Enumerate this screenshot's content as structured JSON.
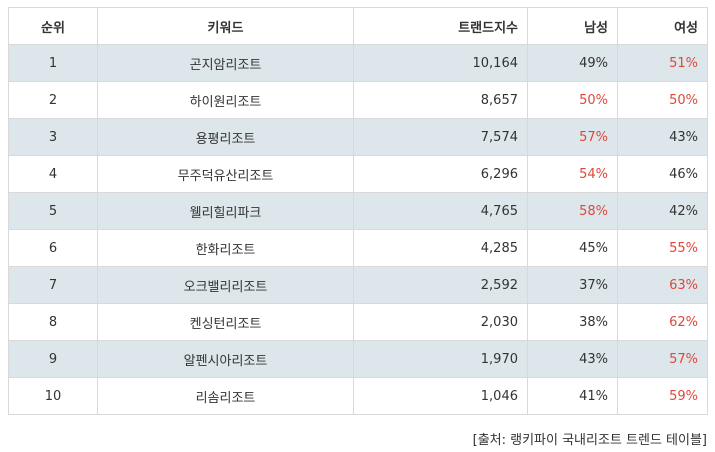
{
  "table": {
    "headers": {
      "rank": "순위",
      "keyword": "키워드",
      "trend_index": "트랜드지수",
      "male": "남성",
      "female": "여성"
    },
    "rows": [
      {
        "rank": "1",
        "keyword": "곤지암리조트",
        "trend_index": "10,164",
        "male": "49%",
        "female": "51%",
        "highlight": "female"
      },
      {
        "rank": "2",
        "keyword": "하이원리조트",
        "trend_index": "8,657",
        "male": "50%",
        "female": "50%",
        "highlight": "both"
      },
      {
        "rank": "3",
        "keyword": "용평리조트",
        "trend_index": "7,574",
        "male": "57%",
        "female": "43%",
        "highlight": "male"
      },
      {
        "rank": "4",
        "keyword": "무주덕유산리조트",
        "trend_index": "6,296",
        "male": "54%",
        "female": "46%",
        "highlight": "male"
      },
      {
        "rank": "5",
        "keyword": "웰리힐리파크",
        "trend_index": "4,765",
        "male": "58%",
        "female": "42%",
        "highlight": "male"
      },
      {
        "rank": "6",
        "keyword": "한화리조트",
        "trend_index": "4,285",
        "male": "45%",
        "female": "55%",
        "highlight": "female"
      },
      {
        "rank": "7",
        "keyword": "오크밸리리조트",
        "trend_index": "2,592",
        "male": "37%",
        "female": "63%",
        "highlight": "female"
      },
      {
        "rank": "8",
        "keyword": "켄싱턴리조트",
        "trend_index": "2,030",
        "male": "38%",
        "female": "62%",
        "highlight": "female"
      },
      {
        "rank": "9",
        "keyword": "알펜시아리조트",
        "trend_index": "1,970",
        "male": "43%",
        "female": "57%",
        "highlight": "female"
      },
      {
        "rank": "10",
        "keyword": "리솜리조트",
        "trend_index": "1,046",
        "male": "41%",
        "female": "59%",
        "highlight": "female"
      }
    ]
  },
  "caption": "[출처: 랭키파이 국내리조트 트렌드 테이블]",
  "colors": {
    "row_shade": "#dde6eb",
    "highlight_red": "#e0473a",
    "border": "#d9d9d9",
    "text": "#333333"
  }
}
